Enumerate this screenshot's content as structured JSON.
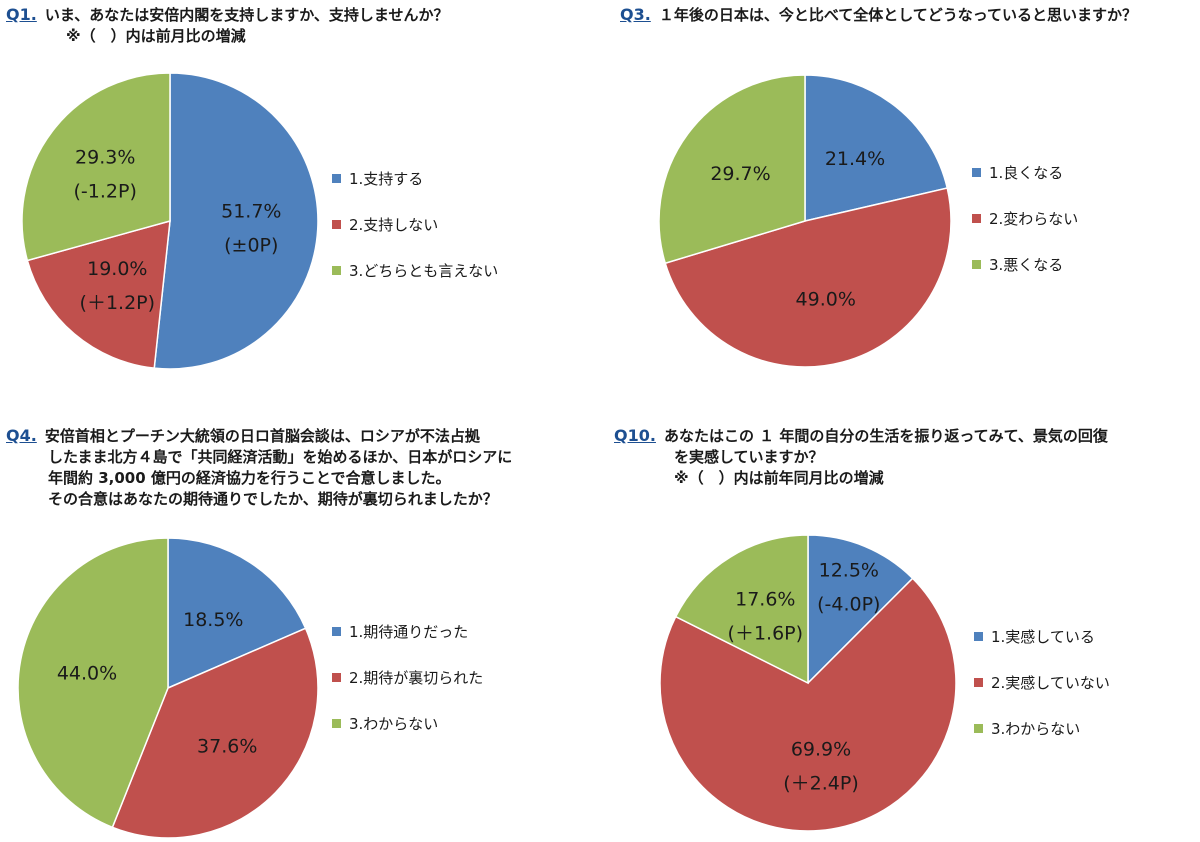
{
  "colors": {
    "blue": "#4f81bd",
    "red": "#c0504d",
    "green": "#9bbb59",
    "question_num": "#1d4f91"
  },
  "chart_data": [
    {
      "type": "pie",
      "question_number": "Q1.",
      "question_lines": [
        "いま、あなたは安倍内閣を支持しますか、支持しませんか？"
      ],
      "note": "※（　）内は前月比の増減",
      "categories": [
        "1.支持する",
        "2.支持しない",
        "3.どちらとも言えない"
      ],
      "values": [
        51.7,
        19.0,
        29.3
      ],
      "value_labels": [
        "51.7%",
        "19.0%",
        "29.3%"
      ],
      "change_labels": [
        "(±0P)",
        "(＋1.2P)",
        "(-1.2P)"
      ],
      "legend_position": "right"
    },
    {
      "type": "pie",
      "question_number": "Q3.",
      "question_lines": [
        "１年後の日本は、今と比べて全体としてどうなっていると思いますか？"
      ],
      "note": "",
      "categories": [
        "1.良くなる",
        "2.変わらない",
        "3.悪くなる"
      ],
      "values": [
        21.4,
        49.0,
        29.7
      ],
      "value_labels": [
        "21.4%",
        "49.0%",
        "29.7%"
      ],
      "change_labels": [
        "",
        "",
        ""
      ],
      "legend_position": "right"
    },
    {
      "type": "pie",
      "question_number": "Q4.",
      "question_lines": [
        "安倍首相とプーチン大統領の日ロ首脳会談は、ロシアが不法占拠",
        "したまま北方４島で「共同経済活動」を始めるほか、日本がロシアに",
        "年間約 3,000 億円の経済協力を行うことで合意しました。",
        "その合意はあなたの期待通りでしたか、期待が裏切られましたか？"
      ],
      "note": "",
      "categories": [
        "1.期待通りだった",
        "2.期待が裏切られた",
        "3.わからない"
      ],
      "values": [
        18.5,
        37.6,
        44.0
      ],
      "value_labels": [
        "18.5%",
        "37.6%",
        "44.0%"
      ],
      "change_labels": [
        "",
        "",
        ""
      ],
      "legend_position": "right"
    },
    {
      "type": "pie",
      "question_number": "Q10.",
      "question_lines": [
        "あなたはこの １ 年間の自分の生活を振り返ってみて、景気の回復",
        "を実感していますか？"
      ],
      "note": "※（　）内は前年同月比の増減",
      "categories": [
        "1.実感している",
        "2.実感していない",
        "3.わからない"
      ],
      "values": [
        12.5,
        69.9,
        17.6
      ],
      "value_labels": [
        "12.5%",
        "69.9%",
        "17.6%"
      ],
      "change_labels": [
        "(-4.0P)",
        "(＋2.4P)",
        "(＋1.6P)"
      ],
      "legend_position": "right"
    }
  ]
}
